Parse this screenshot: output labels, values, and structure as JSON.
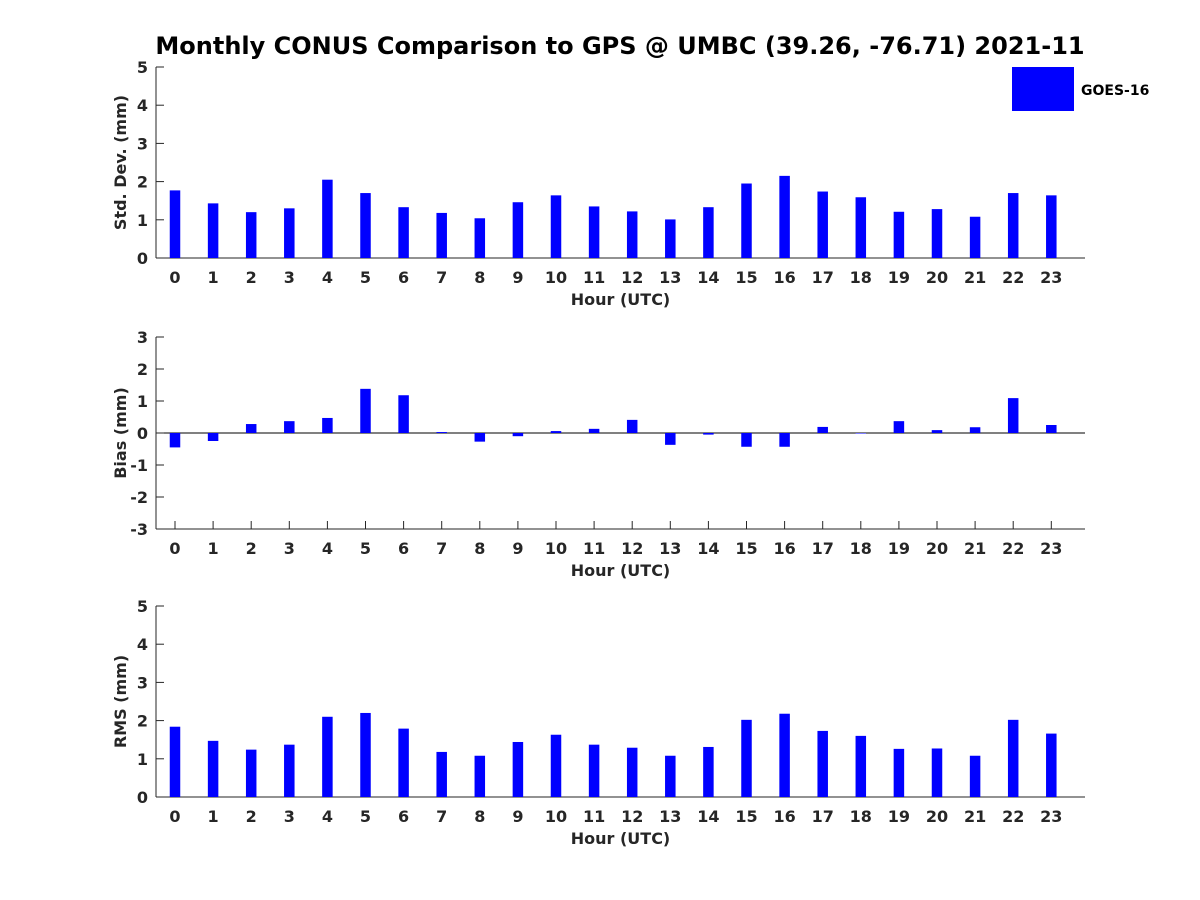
{
  "title": "Monthly CONUS Comparison to GPS @ UMBC (39.26, -76.71) 2021-11",
  "legend": {
    "label": "GOES-16",
    "color": "#0000ff",
    "placement": "top-right"
  },
  "colors": {
    "bar": "#0000ff",
    "axis": "#262626"
  },
  "chart_data": [
    {
      "type": "bar",
      "ylabel": "Std. Dev. (mm)",
      "xlabel": "Hour (UTC)",
      "ylim": [
        0,
        5
      ],
      "yticks": [
        "0",
        "1",
        "2",
        "3",
        "4",
        "5"
      ],
      "categories": [
        "0",
        "1",
        "2",
        "3",
        "4",
        "5",
        "6",
        "7",
        "8",
        "9",
        "10",
        "11",
        "12",
        "13",
        "14",
        "15",
        "16",
        "17",
        "18",
        "19",
        "20",
        "21",
        "22",
        "23"
      ],
      "series": [
        {
          "name": "GOES-16",
          "values": [
            1.77,
            1.43,
            1.2,
            1.3,
            2.05,
            1.7,
            1.33,
            1.18,
            1.04,
            1.46,
            1.64,
            1.35,
            1.22,
            1.01,
            1.33,
            1.95,
            2.15,
            1.74,
            1.59,
            1.21,
            1.28,
            1.08,
            1.7,
            1.64
          ]
        }
      ]
    },
    {
      "type": "bar",
      "ylabel": "Bias (mm)",
      "xlabel": "Hour (UTC)",
      "ylim": [
        -3,
        3
      ],
      "yticks": [
        "-3",
        "-2",
        "-1",
        "0",
        "1",
        "2",
        "3"
      ],
      "categories": [
        "0",
        "1",
        "2",
        "3",
        "4",
        "5",
        "6",
        "7",
        "8",
        "9",
        "10",
        "11",
        "12",
        "13",
        "14",
        "15",
        "16",
        "17",
        "18",
        "19",
        "20",
        "21",
        "22",
        "23"
      ],
      "series": [
        {
          "name": "GOES-16",
          "values": [
            -0.45,
            -0.25,
            0.28,
            0.37,
            0.47,
            1.38,
            1.18,
            0.03,
            -0.27,
            -0.1,
            0.06,
            0.13,
            0.41,
            -0.37,
            -0.05,
            -0.43,
            -0.43,
            0.19,
            0.0,
            0.37,
            0.09,
            0.18,
            1.09,
            0.25
          ]
        }
      ]
    },
    {
      "type": "bar",
      "ylabel": "RMS (mm)",
      "xlabel": "Hour (UTC)",
      "ylim": [
        0,
        5
      ],
      "yticks": [
        "0",
        "1",
        "2",
        "3",
        "4",
        "5"
      ],
      "categories": [
        "0",
        "1",
        "2",
        "3",
        "4",
        "5",
        "6",
        "7",
        "8",
        "9",
        "10",
        "11",
        "12",
        "13",
        "14",
        "15",
        "16",
        "17",
        "18",
        "19",
        "20",
        "21",
        "22",
        "23"
      ],
      "series": [
        {
          "name": "GOES-16",
          "values": [
            1.84,
            1.47,
            1.24,
            1.37,
            2.1,
            2.2,
            1.79,
            1.18,
            1.08,
            1.44,
            1.63,
            1.37,
            1.29,
            1.08,
            1.31,
            2.02,
            2.18,
            1.73,
            1.6,
            1.26,
            1.27,
            1.08,
            2.02,
            1.66
          ]
        }
      ]
    }
  ]
}
